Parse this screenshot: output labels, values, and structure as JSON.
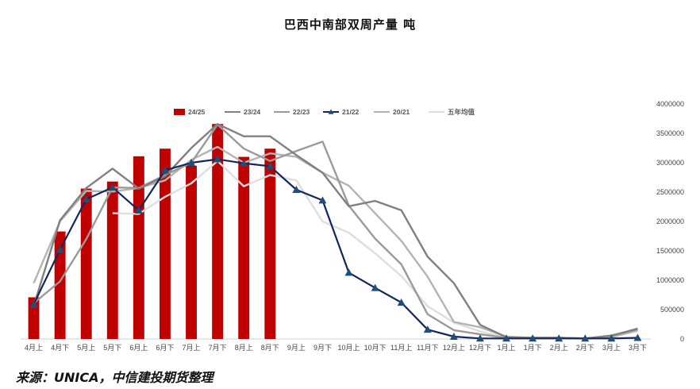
{
  "chart_data": {
    "type": "bar+line",
    "title": "巴西中南部双周产量 吨",
    "categories": [
      "4月上",
      "4月下",
      "5月上",
      "5月下",
      "6月上",
      "6月下",
      "7月上",
      "7月下",
      "8月上",
      "8月下",
      "9月上",
      "9月下",
      "10月上",
      "10月下",
      "11月上",
      "11月下",
      "12月上",
      "12月下",
      "1月上",
      "1月下",
      "2月上",
      "2月下",
      "3月上",
      "3月下"
    ],
    "ylim": [
      0,
      4000000
    ],
    "yticks": [
      0,
      500000,
      1000000,
      1500000,
      2000000,
      2500000,
      3000000,
      3500000,
      4000000
    ],
    "ytick_labels": [
      "0",
      "500000",
      "1000000",
      "1500000",
      "2000000",
      "2500000",
      "3000000",
      "3500000",
      "4000000"
    ],
    "legend_position": "top",
    "series": [
      {
        "name": "24/25",
        "kind": "bar",
        "color": "#c00000",
        "values": [
          710000,
          1830000,
          2560000,
          2680000,
          3110000,
          3240000,
          2950000,
          3660000,
          3100000,
          3240000,
          null,
          null,
          null,
          null,
          null,
          null,
          null,
          null,
          null,
          null,
          null,
          null,
          null,
          null
        ]
      },
      {
        "name": "23/24",
        "kind": "line",
        "color": "#808080",
        "values": [
          560000,
          2020000,
          2570000,
          2900000,
          2560000,
          2770000,
          3250000,
          3660000,
          3450000,
          3450000,
          3130000,
          2830000,
          2260000,
          2350000,
          2190000,
          1400000,
          950000,
          240000,
          30000,
          20000,
          20000,
          10000,
          60000,
          170000
        ]
      },
      {
        "name": "22/23",
        "kind": "line",
        "color": "#9a9a9a",
        "values": [
          610000,
          980000,
          1700000,
          2580000,
          2570000,
          2790000,
          3000000,
          3650000,
          3240000,
          3030000,
          3200000,
          3360000,
          2270000,
          1710000,
          1270000,
          420000,
          150000,
          80000,
          20000,
          20000,
          20000,
          10000,
          50000,
          180000
        ]
      },
      {
        "name": "21/22",
        "kind": "line",
        "color": "#12275e",
        "marker": "triangle",
        "values": [
          590000,
          1520000,
          2380000,
          2580000,
          2190000,
          2870000,
          3000000,
          3060000,
          2990000,
          2940000,
          2540000,
          2360000,
          1130000,
          870000,
          620000,
          160000,
          40000,
          10000,
          10000,
          10000,
          10000,
          10000,
          10000,
          20000
        ]
      },
      {
        "name": "20/21",
        "kind": "line",
        "color": "#b4b4b4",
        "values": [
          950000,
          2000000,
          2520000,
          2510000,
          2570000,
          2700000,
          3050000,
          3270000,
          3000000,
          3160000,
          3100000,
          2830000,
          2610000,
          2140000,
          1670000,
          1060000,
          290000,
          200000,
          40000,
          20000,
          20000,
          10000,
          30000,
          150000
        ]
      },
      {
        "name": "五年均值",
        "kind": "line",
        "color": "#dedede",
        "values": [
          null,
          null,
          null,
          2140000,
          2130000,
          2420000,
          2650000,
          3030000,
          2600000,
          2790000,
          2700000,
          2000000,
          1810000,
          1460000,
          1070000,
          560000,
          280000,
          130000,
          20000,
          10000,
          10000,
          10000,
          40000,
          130000
        ]
      }
    ]
  },
  "source": "来源：UNICA，中信建投期货整理"
}
